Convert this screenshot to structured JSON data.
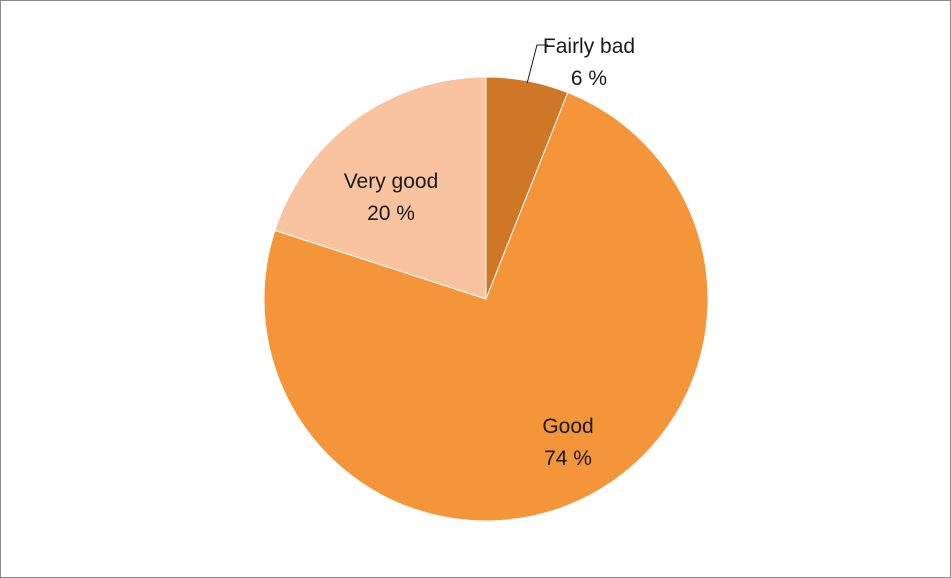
{
  "chart_data": {
    "type": "pie",
    "title": "",
    "slices": [
      {
        "label": "Fairly bad",
        "value": 6,
        "value_label": "6 %",
        "color": "#CD7727"
      },
      {
        "label": "Good",
        "value": 74,
        "value_label": "74 %",
        "color": "#F59539"
      },
      {
        "label": "Very good",
        "value": 20,
        "value_label": "20 %",
        "color": "#F9C3A0"
      }
    ],
    "start_angle": "12 o'clock, clockwise",
    "legend": "none (labels on slices)"
  }
}
